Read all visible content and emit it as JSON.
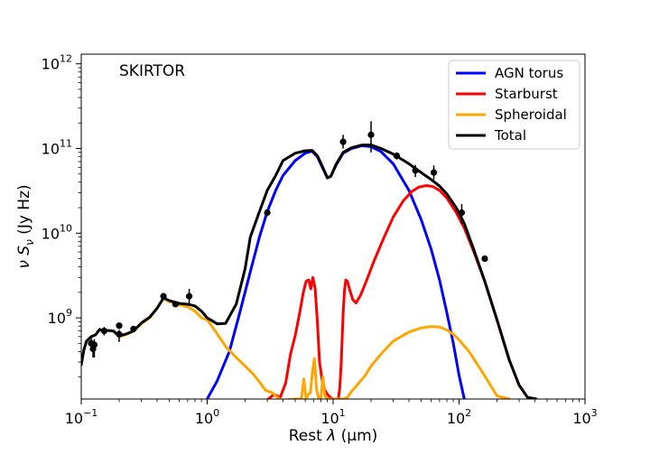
{
  "chart_data": {
    "type": "line",
    "annotation": "SKIRTOR",
    "xlabel": {
      "prefix": "Rest ",
      "symbol": "λ",
      "unit": "(μm)"
    },
    "ylabel": {
      "symbol": "ν S",
      "subscript": "ν",
      "unit": "(Jy Hz)"
    },
    "xscale": "log",
    "yscale": "log",
    "xlim": [
      0.1,
      1000
    ],
    "ylim": [
      110000000.0,
      1300000000000.0
    ],
    "x_ticks": [
      {
        "value": 0.1,
        "base": "10",
        "exp": "−1"
      },
      {
        "value": 1,
        "base": "10",
        "exp": "0"
      },
      {
        "value": 10,
        "base": "10",
        "exp": "1"
      },
      {
        "value": 100,
        "base": "10",
        "exp": "2"
      },
      {
        "value": 1000,
        "base": "10",
        "exp": "3"
      }
    ],
    "y_ticks": [
      {
        "value": 1000000000.0,
        "base": "10",
        "exp": "9"
      },
      {
        "value": 10000000000.0,
        "base": "10",
        "exp": "10"
      },
      {
        "value": 100000000000.0,
        "base": "10",
        "exp": "11"
      },
      {
        "value": 1000000000000.0,
        "base": "10",
        "exp": "12"
      }
    ],
    "grid": false,
    "legend_position": "top-right",
    "series": [
      {
        "name": "AGN torus",
        "color": "#0000ff",
        "x": [
          1.0,
          1.2,
          1.5,
          1.8,
          2.2,
          2.6,
          3.0,
          3.5,
          4.0,
          5.0,
          6.0,
          6.8,
          7.5,
          8.2,
          9.0,
          9.6,
          10.5,
          12.0,
          14.0,
          17.0,
          20.0,
          24.0,
          30.0,
          40.0,
          50.0,
          60.0,
          70.0,
          80.0,
          90.0,
          100.0,
          110.0
        ],
        "y": [
          110000000.0,
          180000000.0,
          400000000.0,
          1100000000.0,
          3500000000.0,
          9000000000.0,
          18000000000.0,
          32000000000.0,
          48000000000.0,
          72000000000.0,
          88000000000.0,
          93000000000.0,
          80000000000.0,
          60000000000.0,
          45000000000.0,
          47000000000.0,
          63000000000.0,
          88000000000.0,
          100000000000.0,
          108000000000.0,
          105000000000.0,
          92000000000.0,
          66000000000.0,
          32000000000.0,
          14500000000.0,
          6500000000.0,
          2800000000.0,
          1150000000.0,
          500000000.0,
          210000000.0,
          110000000.0
        ]
      },
      {
        "name": "Starburst",
        "color": "#ff0000",
        "x": [
          3.05,
          3.4,
          3.8,
          4.2,
          4.6,
          5.0,
          5.4,
          5.8,
          6.1,
          6.4,
          6.65,
          6.9,
          7.2,
          7.5,
          7.8,
          8.2,
          8.6,
          9.0,
          9.5,
          10.0,
          10.5,
          11.0,
          11.3,
          11.6,
          12.0,
          12.3,
          12.6,
          13.0,
          13.6,
          14.3,
          15.2,
          16.5,
          18.5,
          21.0,
          25.0,
          30.0,
          36.0,
          42.0,
          48.0,
          55.0,
          62.0,
          70.0,
          80.0,
          95.0,
          110.0,
          130.0,
          160.0,
          200.0,
          250.0,
          300.0,
          350.0,
          410.0
        ],
        "y": [
          110000000.0,
          125000000.0,
          115000000.0,
          170000000.0,
          380000000.0,
          620000000.0,
          1100000000.0,
          2000000000.0,
          2700000000.0,
          2800000000.0,
          2200000000.0,
          3000000000.0,
          2200000000.0,
          900000000.0,
          300000000.0,
          180000000.0,
          140000000.0,
          125000000.0,
          115000000.0,
          110000000.0,
          110000000.0,
          110000000.0,
          150000000.0,
          300000000.0,
          1100000000.0,
          2100000000.0,
          2800000000.0,
          2700000000.0,
          2100000000.0,
          1650000000.0,
          1500000000.0,
          1850000000.0,
          2800000000.0,
          4600000000.0,
          8500000000.0,
          15500000000.0,
          24000000000.0,
          31000000000.0,
          35000000000.0,
          36500000000.0,
          35500000000.0,
          32000000000.0,
          26000000000.0,
          17500000000.0,
          11500000000.0,
          6200000000.0,
          2700000000.0,
          950000000.0,
          320000000.0,
          160000000.0,
          115000000.0,
          110000000.0
        ]
      },
      {
        "name": "Spheroidal",
        "color": "#ffa500",
        "x": [
          0.1,
          0.105,
          0.11,
          0.12,
          0.13,
          0.14,
          0.15,
          0.16,
          0.18,
          0.2,
          0.23,
          0.26,
          0.3,
          0.35,
          0.4,
          0.45,
          0.5,
          0.6,
          0.7,
          0.8,
          0.9,
          1.0,
          1.2,
          1.4,
          1.7,
          2.0,
          2.3,
          2.6,
          2.9,
          3.3,
          3.6,
          4.0,
          4.3,
          5.0,
          5.6,
          5.85,
          6.1,
          6.35,
          6.6,
          6.85,
          7.1,
          7.4,
          7.7,
          8.0,
          8.3,
          8.6,
          9.0,
          9.5,
          10.0,
          12.0,
          13.0,
          14.0,
          16.0,
          18.0,
          20.0,
          25.0,
          30.0,
          40.0,
          50.0,
          60.0,
          70.0,
          80.0,
          90.0,
          100.0,
          120.0,
          150.0,
          200.0,
          250.0
        ],
        "y": [
          280000000.0,
          420000000.0,
          530000000.0,
          600000000.0,
          630000000.0,
          730000000.0,
          700000000.0,
          710000000.0,
          700000000.0,
          600000000.0,
          640000000.0,
          700000000.0,
          850000000.0,
          1000000000.0,
          1300000000.0,
          1700000000.0,
          1550000000.0,
          1430000000.0,
          1350000000.0,
          1200000000.0,
          1000000000.0,
          950000000.0,
          650000000.0,
          460000000.0,
          340000000.0,
          270000000.0,
          220000000.0,
          175000000.0,
          140000000.0,
          130000000.0,
          115000000.0,
          105000000.0,
          108000000.0,
          110000000.0,
          110000000.0,
          190000000.0,
          110000000.0,
          125000000.0,
          130000000.0,
          230000000.0,
          330000000.0,
          140000000.0,
          110000000.0,
          115000000.0,
          200000000.0,
          120000000.0,
          110000000.0,
          110000000.0,
          110000000.0,
          110000000.0,
          115000000.0,
          135000000.0,
          170000000.0,
          210000000.0,
          270000000.0,
          400000000.0,
          530000000.0,
          680000000.0,
          760000000.0,
          790000000.0,
          780000000.0,
          720000000.0,
          640000000.0,
          550000000.0,
          400000000.0,
          240000000.0,
          120000000.0,
          110000000.0
        ]
      },
      {
        "name": "Total",
        "color": "#000000",
        "x": [
          0.1,
          0.105,
          0.11,
          0.12,
          0.13,
          0.14,
          0.15,
          0.16,
          0.18,
          0.2,
          0.23,
          0.26,
          0.3,
          0.35,
          0.4,
          0.45,
          0.5,
          0.6,
          0.7,
          0.8,
          0.9,
          1.0,
          1.2,
          1.4,
          1.7,
          2.0,
          2.2,
          2.6,
          3.0,
          3.5,
          4.0,
          5.0,
          6.0,
          6.8,
          7.5,
          8.2,
          9.0,
          9.6,
          10.5,
          12.0,
          14.0,
          17.0,
          20.0,
          24.0,
          30.0,
          40.0,
          50.0,
          60.0,
          70.0,
          80.0,
          95.0,
          110.0,
          130.0,
          160.0,
          200.0,
          250.0,
          300.0,
          350.0,
          410.0
        ],
        "y": [
          280000000.0,
          420000000.0,
          530000000.0,
          600000000.0,
          630000000.0,
          730000000.0,
          700000000.0,
          710000000.0,
          700000000.0,
          610000000.0,
          650000000.0,
          700000000.0,
          870000000.0,
          1020000000.0,
          1300000000.0,
          1720000000.0,
          1600000000.0,
          1480000000.0,
          1450000000.0,
          1380000000.0,
          1200000000.0,
          1000000000.0,
          850000000.0,
          860000000.0,
          1450000000.0,
          3800000000.0,
          9000000000.0,
          18000000000.0,
          32000000000.0,
          48000000000.0,
          72000000000.0,
          88000000000.0,
          94000000000.0,
          95000000000.0,
          82000000000.0,
          62000000000.0,
          45000000000.0,
          47000000000.0,
          64000000000.0,
          90000000000.0,
          102000000000.0,
          110000000000.0,
          110000000000.0,
          100000000000.0,
          86000000000.0,
          66000000000.0,
          52000000000.0,
          43000000000.0,
          36000000000.0,
          29000000000.0,
          20000000000.0,
          13000000000.0,
          6600000000.0,
          2700000000.0,
          950000000.0,
          320000000.0,
          160000000.0,
          115000000.0,
          110000000.0
        ]
      }
    ],
    "observed_points": [
      {
        "x": 0.12,
        "y": 500000000.0,
        "ylow": 430000000.0,
        "yhigh": 580000000.0
      },
      {
        "x": 0.124,
        "y": 430000000.0,
        "ylow": 340000000.0,
        "yhigh": 500000000.0
      },
      {
        "x": 0.127,
        "y": 480000000.0,
        "ylow": 340000000.0,
        "yhigh": 560000000.0
      },
      {
        "x": 0.152,
        "y": 700000000.0,
        "ylow": 620000000.0,
        "yhigh": 780000000.0
      },
      {
        "x": 0.2,
        "y": 810000000.0,
        "ylow": 740000000.0,
        "yhigh": 880000000.0
      },
      {
        "x": 0.2,
        "y": 640000000.0,
        "ylow": 520000000.0,
        "yhigh": 720000000.0
      },
      {
        "x": 0.26,
        "y": 740000000.0,
        "ylow": 680000000.0,
        "yhigh": 800000000.0
      },
      {
        "x": 0.45,
        "y": 1800000000.0,
        "ylow": 1700000000.0,
        "yhigh": 1900000000.0
      },
      {
        "x": 0.56,
        "y": 1450000000.0,
        "ylow": 1380000000.0,
        "yhigh": 1550000000.0
      },
      {
        "x": 0.72,
        "y": 1800000000.0,
        "ylow": 1450000000.0,
        "yhigh": 2200000000.0
      },
      {
        "x": 3.0,
        "y": 17500000000.0,
        "ylow": 16000000000.0,
        "yhigh": 19000000000.0
      },
      {
        "x": 12.0,
        "y": 120000000000.0,
        "ylow": 100000000000.0,
        "yhigh": 145000000000.0
      },
      {
        "x": 20.0,
        "y": 145000000000.0,
        "ylow": 90000000000.0,
        "yhigh": 210000000000.0
      },
      {
        "x": 32.0,
        "y": 82000000000.0,
        "ylow": 74000000000.0,
        "yhigh": 90000000000.0
      },
      {
        "x": 45.0,
        "y": 55000000000.0,
        "ylow": 46000000000.0,
        "yhigh": 64000000000.0
      },
      {
        "x": 63.0,
        "y": 52000000000.0,
        "ylow": 43000000000.0,
        "yhigh": 63000000000.0
      },
      {
        "x": 105.0,
        "y": 17500000000.0,
        "ylow": 13000000000.0,
        "yhigh": 22000000000.0
      },
      {
        "x": 160.0,
        "y": 5000000000.0,
        "ylow": 4600000000.0,
        "yhigh": 5400000000.0
      }
    ]
  }
}
